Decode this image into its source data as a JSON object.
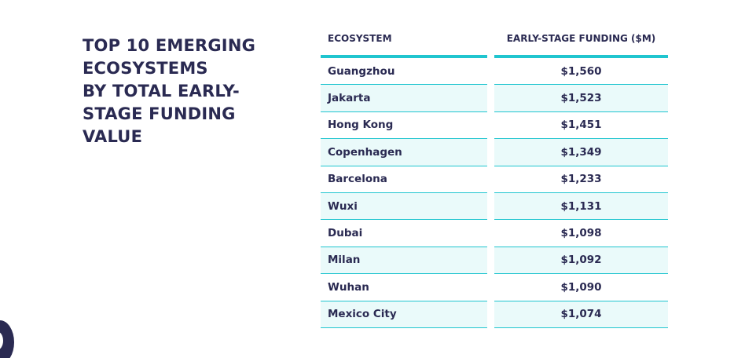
{
  "chart_data": {
    "type": "table",
    "title_lines": [
      "TOP 10 EMERGING",
      "ECOSYSTEMS",
      "BY TOTAL EARLY-",
      "STAGE FUNDING",
      "VALUE"
    ],
    "columns": [
      "ECOSYSTEM",
      "EARLY-STAGE FUNDING ($M)"
    ],
    "rows": [
      {
        "ecosystem": "Guangzhou",
        "funding": "$1,560"
      },
      {
        "ecosystem": "Jakarta",
        "funding": "$1,523"
      },
      {
        "ecosystem": "Hong Kong",
        "funding": "$1,451"
      },
      {
        "ecosystem": "Copenhagen",
        "funding": "$1,349"
      },
      {
        "ecosystem": "Barcelona",
        "funding": "$1,233"
      },
      {
        "ecosystem": "Wuxi",
        "funding": "$1,131"
      },
      {
        "ecosystem": "Dubai",
        "funding": "$1,098"
      },
      {
        "ecosystem": "Milan",
        "funding": "$1,092"
      },
      {
        "ecosystem": "Wuhan",
        "funding": "$1,090"
      },
      {
        "ecosystem": "Mexico City",
        "funding": "$1,074"
      }
    ],
    "values": [
      1560,
      1523,
      1451,
      1349,
      1233,
      1131,
      1098,
      1092,
      1090,
      1074
    ]
  },
  "colors": {
    "text": "#2a2a52",
    "accent": "#20c5cf",
    "row_stripe": "#eafafa"
  }
}
